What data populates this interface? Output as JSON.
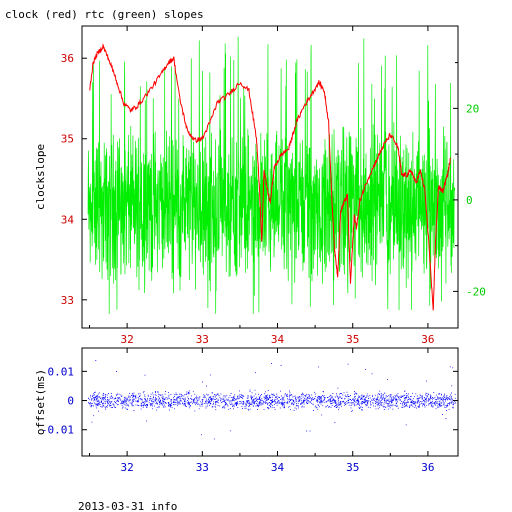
{
  "figure": {
    "title": "clock (red) rtc (green) slopes",
    "footer": "2013-03-31 info"
  },
  "colors": {
    "clock": "#ff0000",
    "rtc": "#00ee00",
    "offset": "#0000ff",
    "frame": "#000000"
  },
  "chart_data": [
    {
      "type": "line",
      "title": "clock (red) rtc (green) slopes",
      "xlim": [
        31.4,
        36.4
      ],
      "x_ticks": [
        32,
        33,
        34,
        35,
        36
      ],
      "x_tick_labels": [
        "32",
        "33",
        "34",
        "35",
        "36"
      ],
      "grid": false,
      "y_left": {
        "label": "clockslope",
        "lim": [
          32.65,
          36.4
        ],
        "ticks": [
          33,
          34,
          35,
          36
        ],
        "tick_labels": [
          "33",
          "34",
          "35",
          "36"
        ]
      },
      "y_right": {
        "label": "",
        "lim": [
          -28,
          38
        ],
        "ticks": [
          -20,
          0,
          20
        ],
        "tick_labels": [
          "-20",
          "0",
          "20"
        ]
      },
      "series": [
        {
          "name": "clock",
          "axis": "left",
          "color": "#ff0000",
          "x": [
            31.5,
            31.55,
            31.6,
            31.68,
            31.75,
            31.85,
            31.95,
            32.05,
            32.15,
            32.3,
            32.45,
            32.55,
            32.62,
            32.7,
            32.8,
            32.9,
            33.0,
            33.1,
            33.2,
            33.35,
            33.5,
            33.62,
            33.72,
            33.76,
            33.79,
            33.82,
            33.86,
            33.9,
            33.96,
            34.05,
            34.15,
            34.25,
            34.35,
            34.45,
            34.55,
            34.62,
            34.68,
            34.72,
            34.76,
            34.8,
            34.84,
            34.88,
            34.93,
            34.97,
            35.02,
            35.05,
            35.1,
            35.2,
            35.3,
            35.4,
            35.5,
            35.6,
            35.65,
            35.72,
            35.78,
            35.84,
            35.9,
            35.96,
            36.02,
            36.07,
            36.1,
            36.14,
            36.2,
            36.26,
            36.3
          ],
          "values": [
            35.6,
            35.95,
            36.05,
            36.15,
            36.0,
            35.75,
            35.45,
            35.35,
            35.42,
            35.6,
            35.8,
            35.95,
            36.0,
            35.5,
            35.1,
            34.98,
            35.0,
            35.2,
            35.45,
            35.55,
            35.7,
            35.6,
            35.0,
            34.4,
            33.7,
            34.6,
            34.4,
            34.2,
            34.65,
            34.8,
            34.88,
            35.2,
            35.4,
            35.55,
            35.7,
            35.6,
            35.2,
            34.3,
            33.6,
            33.3,
            34.1,
            34.2,
            34.3,
            33.2,
            34.05,
            33.9,
            34.25,
            34.5,
            34.7,
            34.9,
            35.05,
            34.9,
            34.55,
            34.55,
            34.6,
            34.45,
            34.6,
            34.35,
            33.6,
            32.85,
            33.7,
            34.4,
            34.35,
            34.55,
            34.75
          ]
        },
        {
          "name": "rtc",
          "axis": "right",
          "color": "#00ee00",
          "x_range": [
            31.48,
            36.36
          ],
          "center": 0,
          "envelope_typical": [
            -12,
            10
          ],
          "envelope_extreme": [
            -25,
            36
          ]
        }
      ]
    },
    {
      "type": "scatter",
      "title": "",
      "xlim": [
        31.4,
        36.4
      ],
      "x_ticks": [
        32,
        33,
        34,
        35,
        36
      ],
      "x_tick_labels": [
        "32",
        "33",
        "34",
        "35",
        "36"
      ],
      "grid": false,
      "y": {
        "label": "offset(ms)",
        "lim": [
          -0.019,
          0.018
        ],
        "ticks": [
          -0.01,
          0,
          0.01
        ],
        "tick_labels": [
          "-0.01",
          "0",
          "0.01"
        ]
      },
      "series": [
        {
          "name": "offset",
          "color": "#0000ff",
          "x_range": [
            31.48,
            36.36
          ],
          "center": 0,
          "band_typical": [
            -0.004,
            0.004
          ],
          "band_extreme": [
            -0.014,
            0.017
          ]
        }
      ]
    }
  ]
}
